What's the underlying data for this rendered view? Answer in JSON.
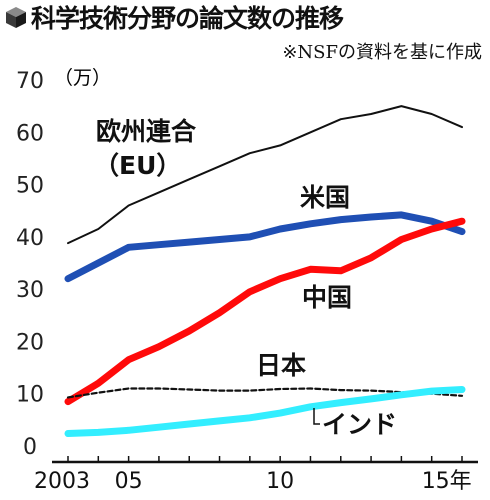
{
  "title": "科学技術分野の論文数の推移",
  "source_note": "※NSFの資料を基に作成",
  "icon": "cube-icon",
  "chart_data": {
    "type": "line",
    "title": "科学技術分野の論文数の推移",
    "ylabel": "（万）",
    "ylim": [
      0,
      70
    ],
    "y_ticks": [
      0,
      10,
      20,
      30,
      40,
      50,
      60,
      70
    ],
    "x": [
      2003,
      2004,
      2005,
      2006,
      2007,
      2008,
      2009,
      2010,
      2011,
      2012,
      2013,
      2014,
      2015,
      2016
    ],
    "x_ticks": [
      2003,
      2005,
      2010,
      2015
    ],
    "x_tick_labels": [
      "2003",
      "05",
      "10",
      "15年"
    ],
    "grid": false,
    "legend": "inline labels",
    "series": [
      {
        "name": "欧州連合（EU）",
        "color": "#111111",
        "values": [
          38.8,
          41.5,
          46,
          48.5,
          51,
          53.5,
          56,
          57.5,
          60,
          62.5,
          63.5,
          65,
          63.5,
          61
        ]
      },
      {
        "name": "米国",
        "color": "#1f4fb4",
        "values": [
          32,
          35,
          38,
          38.5,
          39,
          39.5,
          40,
          41.5,
          42.5,
          43.3,
          43.8,
          44.2,
          43,
          41
        ]
      },
      {
        "name": "中国",
        "color": "#ff0a0a",
        "values": [
          8.5,
          12,
          16.5,
          19,
          22,
          25.5,
          29.5,
          32,
          33.8,
          33.5,
          36,
          39.5,
          41.5,
          43
        ]
      },
      {
        "name": "日本",
        "color": "#111111",
        "values": [
          9.3,
          10.2,
          11,
          11,
          10.8,
          10.6,
          10.6,
          10.9,
          11,
          10.7,
          10.6,
          10.3,
          10,
          9.6
        ]
      },
      {
        "name": "インド",
        "color": "#33eeff",
        "values": [
          2.4,
          2.6,
          3,
          3.6,
          4.2,
          4.8,
          5.4,
          6.3,
          7.5,
          8.3,
          9,
          9.8,
          10.5,
          10.8
        ]
      }
    ]
  }
}
